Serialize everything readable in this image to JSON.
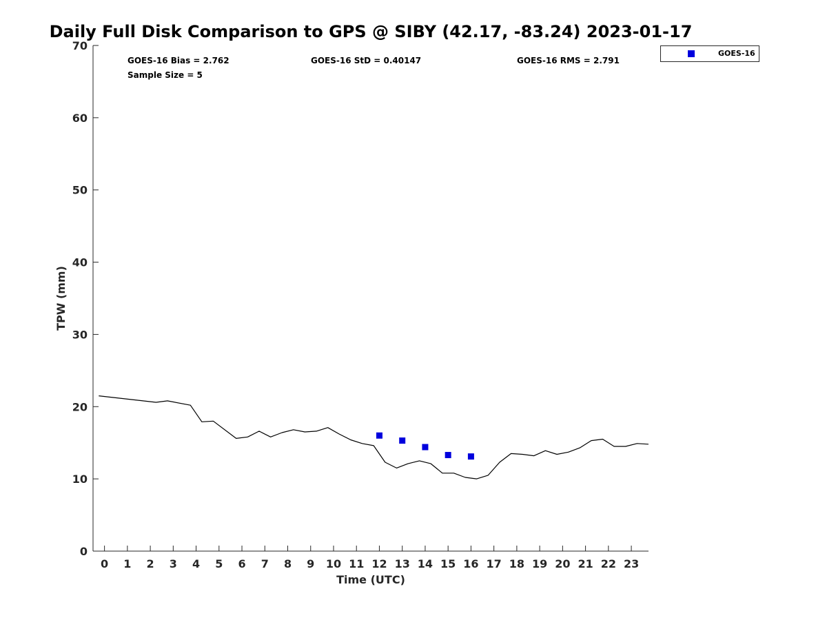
{
  "chart_data": {
    "type": "line",
    "title": "Daily Full Disk Comparison to GPS @ SIBY (42.17, -83.24) 2023-01-17",
    "xlabel": "Time (UTC)",
    "ylabel": "TPW (mm)",
    "xlim": [
      -0.5,
      23.75
    ],
    "ylim": [
      0,
      70
    ],
    "xticks": [
      0,
      1,
      2,
      3,
      4,
      5,
      6,
      7,
      8,
      9,
      10,
      11,
      12,
      13,
      14,
      15,
      16,
      17,
      18,
      19,
      20,
      21,
      22,
      23
    ],
    "yticks": [
      0,
      10,
      20,
      30,
      40,
      50,
      60,
      70
    ],
    "grid": false,
    "legend_position": "outside top-right",
    "stats": {
      "bias": "GOES-16 Bias = 2.762",
      "std": "GOES-16 StD = 0.40147",
      "rms": "GOES-16 RMS = 2.791",
      "sample": "Sample Size = 5"
    },
    "series": [
      {
        "style": "line",
        "color": "#000000",
        "x": [
          -0.25,
          2.25,
          2.75,
          3.75,
          4.25,
          4.75,
          5.75,
          6.25,
          6.75,
          7.25,
          7.75,
          8.25,
          8.75,
          9.25,
          9.75,
          10.25,
          10.75,
          11.25,
          11.75,
          12.25,
          12.75,
          13.25,
          13.75,
          14.25,
          14.75,
          15.25,
          15.75,
          16.25,
          16.75,
          17.25,
          17.75,
          18.25,
          18.75,
          19.25,
          19.75,
          20.25,
          20.75,
          21.25,
          21.75,
          22.25,
          22.75,
          23.25,
          23.75
        ],
        "y": [
          21.5,
          20.6,
          20.8,
          20.2,
          17.9,
          18.0,
          15.6,
          15.8,
          16.6,
          15.8,
          16.4,
          16.8,
          16.5,
          16.6,
          17.1,
          16.2,
          15.4,
          14.9,
          14.6,
          12.3,
          11.5,
          12.1,
          12.5,
          12.1,
          10.8,
          10.8,
          10.2,
          10.0,
          10.5,
          12.3,
          13.5,
          13.4,
          13.2,
          13.9,
          13.4,
          13.7,
          14.3,
          15.3,
          15.5,
          14.5,
          14.5,
          14.9,
          14.8
        ]
      },
      {
        "name": "GOES-16",
        "style": "marker-square",
        "color": "#0000dd",
        "x": [
          12.0,
          13.0,
          14.0,
          15.0,
          16.0
        ],
        "y": [
          16.0,
          15.3,
          14.4,
          13.3,
          13.1
        ]
      }
    ]
  }
}
